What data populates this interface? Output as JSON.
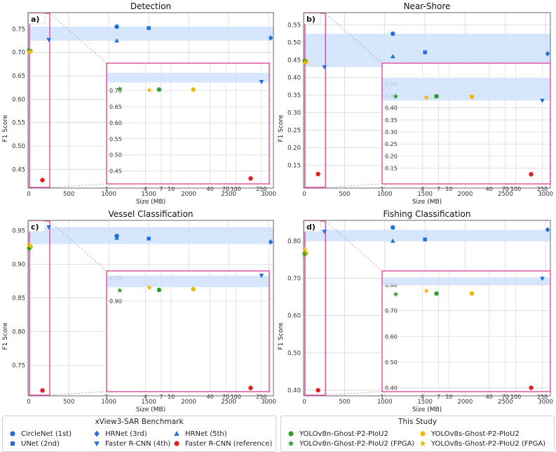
{
  "colors": {
    "blue": "#1f6fe0",
    "green": "#2e9e2e",
    "yellow": "#f2b705",
    "red": "#e02020",
    "band": "#cfe2fb",
    "inset_border": "#e0479e",
    "grid": "#d6d6d6"
  },
  "x_ticks": [
    "0",
    "500",
    "1000",
    "1500",
    "2000",
    "2500",
    "3000"
  ],
  "inset_x_ticks": [
    "1",
    "4",
    "7",
    "10",
    "40",
    "70",
    "100",
    "250"
  ],
  "legend": {
    "benchmark_title": "xView3-SAR Benchmark",
    "study_title": "This Study",
    "benchmark_items": [
      {
        "label": "CircleNet (1st)",
        "marker": "circle",
        "color": "blue"
      },
      {
        "label": "HRNet (3rd)",
        "marker": "diamond",
        "color": "blue"
      },
      {
        "label": "HRNet (5th)",
        "marker": "triangle-up",
        "color": "blue"
      },
      {
        "label": "UNet (2nd)",
        "marker": "square",
        "color": "blue"
      },
      {
        "label": "Faster R-CNN (4th)",
        "marker": "triangle-down",
        "color": "blue"
      },
      {
        "label": "Faster R-CNN (reference)",
        "marker": "circle",
        "color": "red"
      }
    ],
    "study_items": [
      {
        "label": "YOLOv8n-Ghost-P2-PIoU2",
        "marker": "circle",
        "color": "green"
      },
      {
        "label": "YOLOv8s-Ghost-P2-PIoU2",
        "marker": "circle",
        "color": "yellow"
      },
      {
        "label": "YOLOv8n-Ghost-P2-PIoU2 (FPGA)",
        "marker": "star",
        "color": "green"
      },
      {
        "label": "YOLOv8s-Ghost-P2-PIoU2 (FPGA)",
        "marker": "star",
        "color": "yellow"
      }
    ]
  },
  "chart_data": [
    {
      "type": "scatter",
      "panel": "a)",
      "title": "Detection",
      "xlabel": "Size (MB)",
      "ylabel": "F1 Score",
      "xlim": [
        -10,
        3060
      ],
      "ylim": [
        0.41,
        0.785
      ],
      "yticks": [
        "0.45",
        "0.50",
        "0.55",
        "0.60",
        "0.65",
        "0.70",
        "0.75"
      ],
      "band": [
        0.725,
        0.755
      ],
      "inset_ylim": [
        0.41,
        0.785
      ],
      "inset_yticks": [
        "0.45",
        "0.50",
        "0.55",
        "0.60",
        "0.65",
        "0.70"
      ],
      "points": [
        {
          "model": "CircleNet (1st)",
          "marker": "circle",
          "color": "blue",
          "x": 1100,
          "y": 0.755
        },
        {
          "model": "UNet (2nd)",
          "marker": "square",
          "color": "blue",
          "x": 1500,
          "y": 0.752
        },
        {
          "model": "HRNet (3rd)",
          "marker": "diamond",
          "color": "blue",
          "x": 3025,
          "y": 0.731
        },
        {
          "model": "Faster R-CNN (4th)",
          "marker": "triangle-down",
          "color": "blue",
          "x": 250,
          "y": 0.727
        },
        {
          "model": "HRNet (5th)",
          "marker": "triangle-up",
          "color": "blue",
          "x": 1100,
          "y": 0.725
        },
        {
          "model": "Faster R-CNN (reference)",
          "marker": "circle",
          "color": "red",
          "x": 170,
          "y": 0.427
        },
        {
          "model": "YOLOv8n-Ghost-P2-PIoU2",
          "marker": "circle",
          "color": "green",
          "x": 6.5,
          "y": 0.703
        },
        {
          "model": "YOLOv8s-Ghost-P2-PIoU2",
          "marker": "circle",
          "color": "yellow",
          "x": 22,
          "y": 0.703
        },
        {
          "model": "YOLOv8n-Ghost-P2-PIoU2 (FPGA)",
          "marker": "star",
          "color": "green",
          "x": 1.6,
          "y": 0.705
        },
        {
          "model": "YOLOv8s-Ghost-P2-PIoU2 (FPGA)",
          "marker": "star",
          "color": "yellow",
          "x": 4.6,
          "y": 0.701
        }
      ]
    },
    {
      "type": "scatter",
      "panel": "b)",
      "title": "Near-Shore",
      "xlabel": "Size (MB)",
      "ylabel": "F1 Score",
      "xlim": [
        -10,
        3060
      ],
      "ylim": [
        0.085,
        0.585
      ],
      "yticks": [
        "0.15",
        "0.20",
        "0.25",
        "0.30",
        "0.35",
        "0.40",
        "0.45",
        "0.50",
        "0.55"
      ],
      "band": [
        0.43,
        0.525
      ],
      "inset_ylim": [
        0.085,
        0.585
      ],
      "inset_yticks": [
        "0.15",
        "0.20",
        "0.25",
        "0.30",
        "0.35",
        "0.40",
        "0.45",
        "0.50"
      ],
      "points": [
        {
          "model": "CircleNet (1st)",
          "marker": "circle",
          "color": "blue",
          "x": 1100,
          "y": 0.525
        },
        {
          "model": "UNet (2nd)",
          "marker": "square",
          "color": "blue",
          "x": 1500,
          "y": 0.472
        },
        {
          "model": "HRNet (3rd)",
          "marker": "diamond",
          "color": "blue",
          "x": 3025,
          "y": 0.468
        },
        {
          "model": "Faster R-CNN (4th)",
          "marker": "triangle-down",
          "color": "blue",
          "x": 250,
          "y": 0.43
        },
        {
          "model": "HRNet (5th)",
          "marker": "triangle-up",
          "color": "blue",
          "x": 1100,
          "y": 0.46
        },
        {
          "model": "Faster R-CNN (reference)",
          "marker": "circle",
          "color": "red",
          "x": 170,
          "y": 0.125
        },
        {
          "model": "YOLOv8n-Ghost-P2-PIoU2",
          "marker": "circle",
          "color": "green",
          "x": 6.5,
          "y": 0.448
        },
        {
          "model": "YOLOv8s-Ghost-P2-PIoU2",
          "marker": "circle",
          "color": "yellow",
          "x": 22,
          "y": 0.446
        },
        {
          "model": "YOLOv8n-Ghost-P2-PIoU2 (FPGA)",
          "marker": "star",
          "color": "green",
          "x": 1.6,
          "y": 0.447
        },
        {
          "model": "YOLOv8s-Ghost-P2-PIoU2 (FPGA)",
          "marker": "star",
          "color": "yellow",
          "x": 4.6,
          "y": 0.443
        }
      ]
    },
    {
      "type": "scatter",
      "panel": "c)",
      "title": "Vessel Classification",
      "xlabel": "Size (MB)",
      "ylabel": "F1 Score",
      "xlim": [
        -10,
        3060
      ],
      "ylim": [
        0.705,
        0.965
      ],
      "yticks": [
        "0.75",
        "0.80",
        "0.85",
        "0.90",
        "0.95"
      ],
      "band": [
        0.93,
        0.955
      ],
      "inset_ylim": [
        0.705,
        0.965
      ],
      "inset_yticks": [
        "0.95",
        "0.90"
      ],
      "points": [
        {
          "model": "CircleNet (1st)",
          "marker": "circle",
          "color": "blue",
          "x": 1100,
          "y": 0.942
        },
        {
          "model": "UNet (2nd)",
          "marker": "square",
          "color": "blue",
          "x": 1500,
          "y": 0.938
        },
        {
          "model": "HRNet (3rd)",
          "marker": "diamond",
          "color": "blue",
          "x": 3025,
          "y": 0.933
        },
        {
          "model": "Faster R-CNN (4th)",
          "marker": "triangle-down",
          "color": "blue",
          "x": 250,
          "y": 0.955
        },
        {
          "model": "HRNet (5th)",
          "marker": "triangle-up",
          "color": "blue",
          "x": 1100,
          "y": 0.939
        },
        {
          "model": "Faster R-CNN (reference)",
          "marker": "circle",
          "color": "red",
          "x": 170,
          "y": 0.713
        },
        {
          "model": "YOLOv8n-Ghost-P2-PIoU2",
          "marker": "circle",
          "color": "green",
          "x": 6.5,
          "y": 0.924
        },
        {
          "model": "YOLOv8s-Ghost-P2-PIoU2",
          "marker": "circle",
          "color": "yellow",
          "x": 22,
          "y": 0.926
        },
        {
          "model": "YOLOv8n-Ghost-P2-PIoU2 (FPGA)",
          "marker": "star",
          "color": "green",
          "x": 1.6,
          "y": 0.923
        },
        {
          "model": "YOLOv8s-Ghost-P2-PIoU2 (FPGA)",
          "marker": "star",
          "color": "yellow",
          "x": 4.6,
          "y": 0.929
        }
      ]
    },
    {
      "type": "scatter",
      "panel": "d)",
      "title": "Fishing Classification",
      "xlabel": "Size (MB)",
      "ylabel": "F1 Score",
      "xlim": [
        -10,
        3060
      ],
      "ylim": [
        0.385,
        0.855
      ],
      "yticks": [
        "0.40",
        "0.50",
        "0.60",
        "0.70",
        "0.80"
      ],
      "band": [
        0.8,
        0.83
      ],
      "inset_ylim": [
        0.385,
        0.855
      ],
      "inset_yticks": [
        "0.40",
        "0.50",
        "0.60",
        "0.70",
        "0.80"
      ],
      "points": [
        {
          "model": "CircleNet (1st)",
          "marker": "circle",
          "color": "blue",
          "x": 1100,
          "y": 0.836
        },
        {
          "model": "UNet (2nd)",
          "marker": "square",
          "color": "blue",
          "x": 1500,
          "y": 0.804
        },
        {
          "model": "HRNet (3rd)",
          "marker": "diamond",
          "color": "blue",
          "x": 3025,
          "y": 0.83
        },
        {
          "model": "Faster R-CNN (4th)",
          "marker": "triangle-down",
          "color": "blue",
          "x": 250,
          "y": 0.825
        },
        {
          "model": "HRNet (5th)",
          "marker": "triangle-up",
          "color": "blue",
          "x": 1100,
          "y": 0.8
        },
        {
          "model": "Faster R-CNN (reference)",
          "marker": "circle",
          "color": "red",
          "x": 170,
          "y": 0.4
        },
        {
          "model": "YOLOv8n-Ghost-P2-PIoU2",
          "marker": "circle",
          "color": "green",
          "x": 6.5,
          "y": 0.767
        },
        {
          "model": "YOLOv8s-Ghost-P2-PIoU2",
          "marker": "circle",
          "color": "yellow",
          "x": 22,
          "y": 0.767
        },
        {
          "model": "YOLOv8n-Ghost-P2-PIoU2 (FPGA)",
          "marker": "star",
          "color": "green",
          "x": 1.6,
          "y": 0.764
        },
        {
          "model": "YOLOv8s-Ghost-P2-PIoU2 (FPGA)",
          "marker": "star",
          "color": "yellow",
          "x": 4.6,
          "y": 0.777
        }
      ]
    }
  ]
}
